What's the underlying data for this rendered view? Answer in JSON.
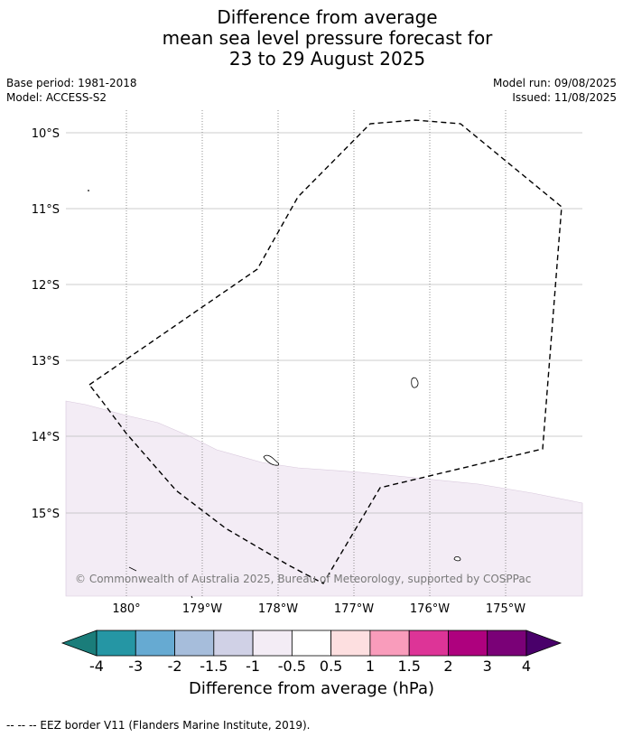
{
  "title": {
    "line1": "Difference from average",
    "line2": "mean sea level pressure forecast for",
    "line3": "23 to 29 August 2025"
  },
  "meta": {
    "base_period": "Base period: 1981-2018",
    "model": "Model: ACCESS-S2",
    "model_run": "Model run: 09/08/2025",
    "issued": "Issued: 11/08/2025"
  },
  "map": {
    "lat_labels": [
      "10°S",
      "11°S",
      "12°S",
      "13°S",
      "14°S",
      "15°S"
    ],
    "lon_labels": [
      "180°",
      "179°W",
      "178°W",
      "177°W",
      "176°W",
      "175°W"
    ],
    "anomaly_fill_color": "#f3ecf5",
    "copyright": "© Commonwealth of Australia 2025, Bureau of Meteorology, supported by COSPPac"
  },
  "colorbar": {
    "title": "Difference from average (hPa)",
    "tick_labels": [
      "-4",
      "-3",
      "-2",
      "-1.5",
      "-1",
      "-0.5",
      "0.5",
      "1",
      "1.5",
      "2",
      "3",
      "4"
    ],
    "colors": [
      "#1a7d7a",
      "#2596a4",
      "#66aad2",
      "#a6bddb",
      "#d0d1e6",
      "#f3ecf5",
      "#ffffff",
      "#fddfe0",
      "#f99cbb",
      "#dd3497",
      "#ae017e",
      "#7a0177",
      "#49006a"
    ]
  },
  "footnote": "-- -- -- EEZ border V11 (Flanders Marine Institute, 2019)."
}
